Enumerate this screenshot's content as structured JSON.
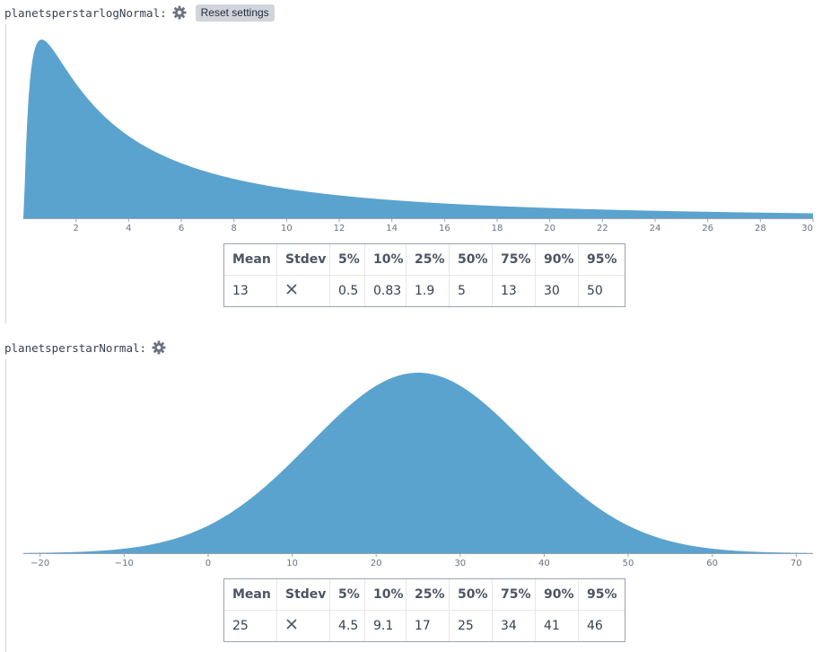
{
  "reset_label": "Reset settings",
  "table_headers": [
    "Mean",
    "Stdev",
    "5%",
    "10%",
    "25%",
    "50%",
    "75%",
    "90%",
    "95%"
  ],
  "variables": [
    {
      "name": "planetsperstarlogNormal:",
      "icons": {
        "settings": "gear-icon",
        "stdev": "close-icon"
      },
      "fill_color": "#5ba3cf",
      "stats": {
        "mean": "13",
        "p5": "0.5",
        "p10": "0.83",
        "p25": "1.9",
        "p50": "5",
        "p75": "13",
        "p90": "30",
        "p95": "50"
      }
    },
    {
      "name": "planetsperstarNormal:",
      "icons": {
        "settings": "gear-icon",
        "stdev": "close-icon"
      },
      "fill_color": "#5ba3cf",
      "stats": {
        "mean": "25",
        "p5": "4.5",
        "p10": "9.1",
        "p25": "17",
        "p50": "25",
        "p75": "34",
        "p90": "41",
        "p95": "46"
      }
    }
  ],
  "chart_data": [
    {
      "type": "area",
      "distribution": "lognormal",
      "mu": 1.6094,
      "sigma": 1.405,
      "xlim": [
        0,
        30
      ],
      "x_ticks": [
        2,
        4,
        6,
        8,
        10,
        12,
        14,
        16,
        18,
        20,
        22,
        24,
        26,
        28,
        30
      ],
      "title": "",
      "xlabel": "",
      "ylabel": "",
      "grid": false
    },
    {
      "type": "area",
      "distribution": "normal",
      "mean": 25,
      "stdev": 12.9,
      "xlim": [
        -22,
        72
      ],
      "x_ticks": [
        -20,
        -10,
        0,
        10,
        20,
        30,
        40,
        50,
        60,
        70
      ],
      "title": "",
      "xlabel": "",
      "ylabel": "",
      "grid": false
    }
  ]
}
